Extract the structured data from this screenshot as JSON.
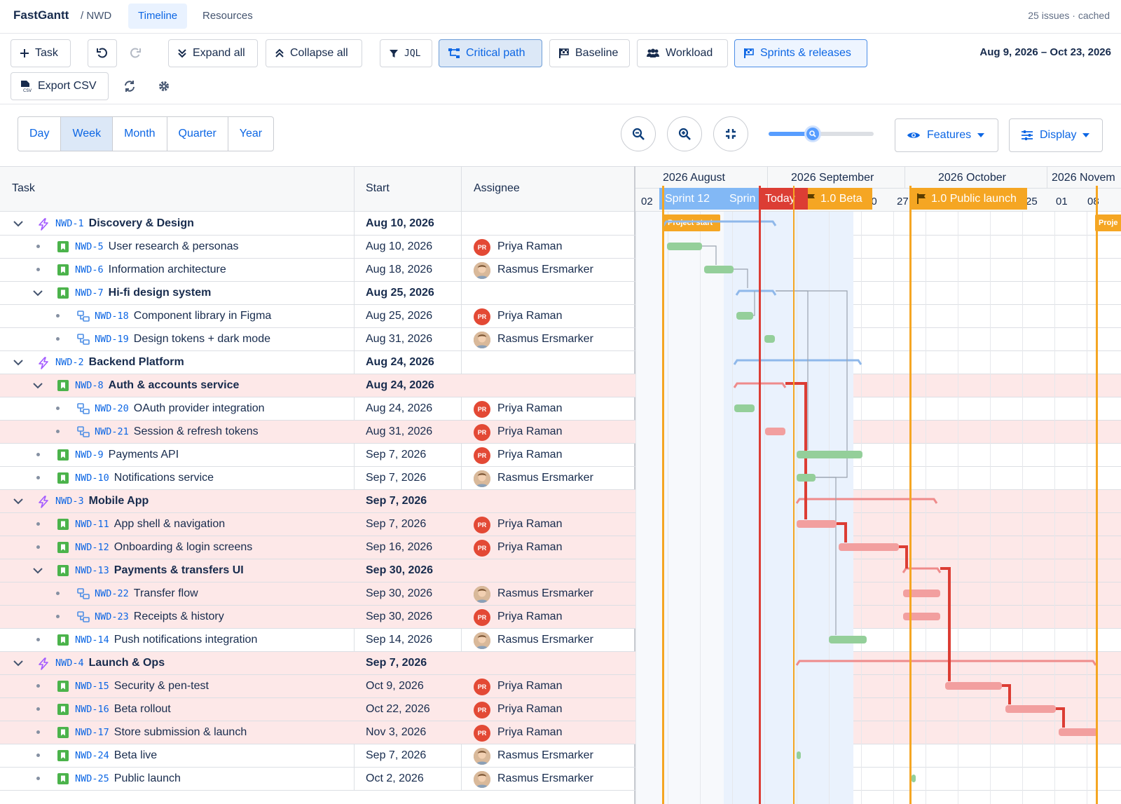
{
  "app": {
    "name": "FastGantt",
    "breadcrumb": "/ NWD",
    "meta": "25 issues · cached"
  },
  "nav": {
    "tabs": [
      "Timeline",
      "Resources"
    ],
    "active": "Timeline"
  },
  "toolbar": {
    "task": "Task",
    "expand_all": "Expand all",
    "collapse_all": "Collapse all",
    "jql": "JQL",
    "critical_path": "Critical path",
    "baseline": "Baseline",
    "workload": "Workload",
    "sprints_releases": "Sprints & releases",
    "export_csv": "Export CSV",
    "date_range": "Aug 9, 2026 – Oct 23, 2026"
  },
  "scale": {
    "tabs": [
      "Day",
      "Week",
      "Month",
      "Quarter",
      "Year"
    ],
    "active": "Week"
  },
  "zoom": {
    "level": 0.42
  },
  "filters": {
    "features": "Features",
    "display": "Display"
  },
  "columns": {
    "task": "Task",
    "start": "Start",
    "assignee": "Assignee"
  },
  "timeline": {
    "months": [
      "2026 August",
      "2026 September",
      "2026 October",
      "2026 Novem"
    ],
    "weeks": [
      "02",
      "20",
      "27",
      "25",
      "01",
      "08"
    ],
    "sprints": [
      "Sprint 12",
      "Sprin"
    ],
    "today": "Today",
    "releases": [
      "1.0 Beta",
      "1.0 Public launch"
    ],
    "markers": [
      "Project start",
      "Proje"
    ]
  },
  "rows": [
    {
      "level": 0,
      "type": "epic",
      "key": "NWD-1",
      "title": "Discovery & Design",
      "start": "Aug 10, 2026",
      "assignee": "",
      "crit": false,
      "expanded": true
    },
    {
      "level": 1,
      "type": "story",
      "key": "NWD-5",
      "title": "User research & personas",
      "start": "Aug 10, 2026",
      "assignee": "Priya Raman",
      "crit": false
    },
    {
      "level": 1,
      "type": "story",
      "key": "NWD-6",
      "title": "Information architecture",
      "start": "Aug 18, 2026",
      "assignee": "Rasmus Ersmarker",
      "crit": false
    },
    {
      "level": 1,
      "type": "story",
      "key": "NWD-7",
      "title": "Hi-fi design system",
      "start": "Aug 25, 2026",
      "assignee": "",
      "crit": false,
      "expanded": true
    },
    {
      "level": 2,
      "type": "sub",
      "key": "NWD-18",
      "title": "Component library in Figma",
      "start": "Aug 25, 2026",
      "assignee": "Priya Raman",
      "crit": false
    },
    {
      "level": 2,
      "type": "sub",
      "key": "NWD-19",
      "title": "Design tokens + dark mode",
      "start": "Aug 31, 2026",
      "assignee": "Rasmus Ersmarker",
      "crit": false
    },
    {
      "level": 0,
      "type": "epic",
      "key": "NWD-2",
      "title": "Backend Platform",
      "start": "Aug 24, 2026",
      "assignee": "",
      "crit": false,
      "expanded": true
    },
    {
      "level": 1,
      "type": "story",
      "key": "NWD-8",
      "title": "Auth & accounts service",
      "start": "Aug 24, 2026",
      "assignee": "",
      "crit": true,
      "expanded": true
    },
    {
      "level": 2,
      "type": "sub",
      "key": "NWD-20",
      "title": "OAuth provider integration",
      "start": "Aug 24, 2026",
      "assignee": "Priya Raman",
      "crit": false
    },
    {
      "level": 2,
      "type": "sub",
      "key": "NWD-21",
      "title": "Session & refresh tokens",
      "start": "Aug 31, 2026",
      "assignee": "Priya Raman",
      "crit": true
    },
    {
      "level": 1,
      "type": "story",
      "key": "NWD-9",
      "title": "Payments API",
      "start": "Sep 7, 2026",
      "assignee": "Priya Raman",
      "crit": false
    },
    {
      "level": 1,
      "type": "story",
      "key": "NWD-10",
      "title": "Notifications service",
      "start": "Sep 7, 2026",
      "assignee": "Rasmus Ersmarker",
      "crit": false
    },
    {
      "level": 0,
      "type": "epic",
      "key": "NWD-3",
      "title": "Mobile App",
      "start": "Sep 7, 2026",
      "assignee": "",
      "crit": true,
      "expanded": true
    },
    {
      "level": 1,
      "type": "story",
      "key": "NWD-11",
      "title": "App shell & navigation",
      "start": "Sep 7, 2026",
      "assignee": "Priya Raman",
      "crit": true
    },
    {
      "level": 1,
      "type": "story",
      "key": "NWD-12",
      "title": "Onboarding & login screens",
      "start": "Sep 16, 2026",
      "assignee": "Priya Raman",
      "crit": true
    },
    {
      "level": 1,
      "type": "story",
      "key": "NWD-13",
      "title": "Payments & transfers UI",
      "start": "Sep 30, 2026",
      "assignee": "",
      "crit": true,
      "expanded": true
    },
    {
      "level": 2,
      "type": "sub",
      "key": "NWD-22",
      "title": "Transfer flow",
      "start": "Sep 30, 2026",
      "assignee": "Rasmus Ersmarker",
      "crit": true
    },
    {
      "level": 2,
      "type": "sub",
      "key": "NWD-23",
      "title": "Receipts & history",
      "start": "Sep 30, 2026",
      "assignee": "Priya Raman",
      "crit": true
    },
    {
      "level": 1,
      "type": "story",
      "key": "NWD-14",
      "title": "Push notifications integration",
      "start": "Sep 14, 2026",
      "assignee": "Rasmus Ersmarker",
      "crit": false
    },
    {
      "level": 0,
      "type": "epic",
      "key": "NWD-4",
      "title": "Launch & Ops",
      "start": "Sep 7, 2026",
      "assignee": "",
      "crit": true,
      "expanded": true
    },
    {
      "level": 1,
      "type": "story",
      "key": "NWD-15",
      "title": "Security & pen-test",
      "start": "Oct 9, 2026",
      "assignee": "Priya Raman",
      "crit": true
    },
    {
      "level": 1,
      "type": "story",
      "key": "NWD-16",
      "title": "Beta rollout",
      "start": "Oct 22, 2026",
      "assignee": "Priya Raman",
      "crit": true
    },
    {
      "level": 1,
      "type": "story",
      "key": "NWD-17",
      "title": "Store submission & launch",
      "start": "Nov 3, 2026",
      "assignee": "Priya Raman",
      "crit": true
    },
    {
      "level": 1,
      "type": "story",
      "key": "NWD-24",
      "title": "Beta live",
      "start": "Sep 7, 2026",
      "assignee": "Rasmus Ersmarker",
      "crit": false
    },
    {
      "level": 1,
      "type": "story",
      "key": "NWD-25",
      "title": "Public launch",
      "start": "Oct 2, 2026",
      "assignee": "Rasmus Ersmarker",
      "crit": false
    }
  ],
  "avatars": {
    "Priya Raman": "PR"
  },
  "colors": {
    "accent": "#0c66e4",
    "critical": "#e03c31",
    "release": "#f5a623",
    "bar_normal": "#94cf9a",
    "bar_critical": "#f29f9f"
  }
}
